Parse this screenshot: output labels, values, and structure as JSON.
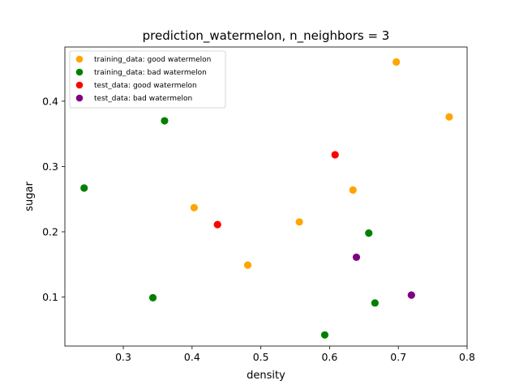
{
  "chart_data": {
    "type": "scatter",
    "title": "prediction_watermelon, n_neighbors = 3",
    "xlabel": "density",
    "ylabel": "sugar",
    "xlim": [
      0.215,
      0.8
    ],
    "ylim": [
      0.025,
      0.483
    ],
    "xticks": [
      0.3,
      0.4,
      0.5,
      0.6,
      0.7,
      0.8
    ],
    "yticks": [
      0.1,
      0.2,
      0.3,
      0.4
    ],
    "xtick_labels": [
      "0.3",
      "0.4",
      "0.5",
      "0.6",
      "0.7",
      "0.8"
    ],
    "ytick_labels": [
      "0.1",
      "0.2",
      "0.3",
      "0.4"
    ],
    "grid": false,
    "legend_position": "top-left",
    "series": [
      {
        "name": "training_data: good watermelon",
        "color": "#ffa500",
        "x": [
          0.697,
          0.774,
          0.634,
          0.556,
          0.403,
          0.481
        ],
        "y": [
          0.46,
          0.376,
          0.264,
          0.215,
          0.237,
          0.149
        ]
      },
      {
        "name": "training_data: bad watermelon",
        "color": "#008000",
        "x": [
          0.36,
          0.243,
          0.657,
          0.343,
          0.666,
          0.593
        ],
        "y": [
          0.37,
          0.267,
          0.198,
          0.099,
          0.091,
          0.042
        ]
      },
      {
        "name": "test_data: good watermelon",
        "color": "#ff0000",
        "x": [
          0.608,
          0.437
        ],
        "y": [
          0.318,
          0.211
        ]
      },
      {
        "name": "test_data: bad watermelon",
        "color": "#800080",
        "x": [
          0.639,
          0.719
        ],
        "y": [
          0.161,
          0.103
        ]
      }
    ]
  }
}
